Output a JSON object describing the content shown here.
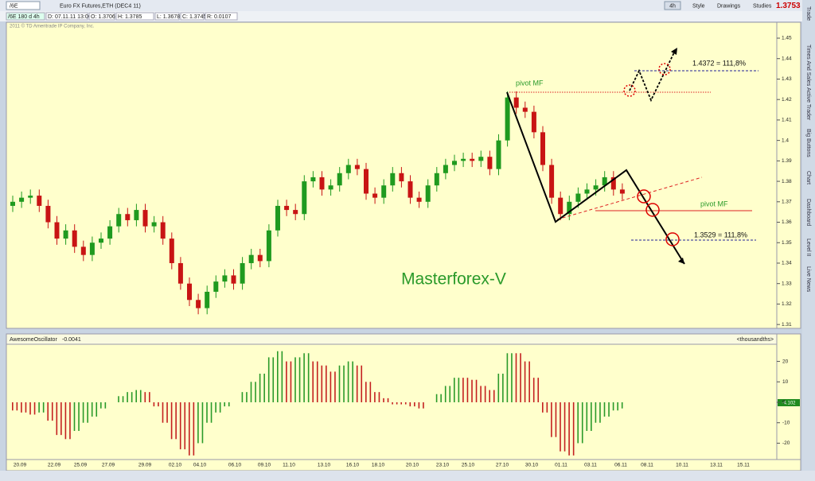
{
  "toolbar": {
    "symbol": "/6E",
    "description": "Euro FX Futures,ETH (DEC4 11)",
    "period": "4h",
    "buttons": [
      "Style",
      "Drawings",
      "Studies"
    ],
    "last_price": "1.3753"
  },
  "info_bar": [
    "/6E 180 d 4h",
    "D: 07.11.11 13:00",
    "O: 1.3706",
    "H: 1.3785",
    "L: 1.3678",
    "C: 1.3745",
    "R: 0.0107"
  ],
  "copyright": "2011 © TD Ameritrade IP Company, Inc.",
  "side_tabs": [
    "Trade",
    "Times And Sales",
    "Active Trader",
    "Big Buttons",
    "Chart",
    "Dashboard",
    "Level II",
    "Live News"
  ],
  "annotations": {
    "pivot_top": "pivot MF",
    "pivot_bottom": "pivot MF",
    "target_up": "1.4372 = 111,8%",
    "target_down": "1.3529 = 111,8%",
    "watermark": "Masterforex-V"
  },
  "chart_data": [
    {
      "type": "candlestick",
      "up_color": "#1f9a1f",
      "down_color": "#c81414",
      "ylim": [
        1.3085,
        1.457
      ],
      "yticks": [
        1.31,
        1.32,
        1.33,
        1.34,
        1.35,
        1.36,
        1.37,
        1.38,
        1.39,
        1.4,
        1.41,
        1.42,
        1.43,
        1.44,
        1.45
      ],
      "x": [
        "20.09",
        "22.09",
        "25.09",
        "27.09",
        "29.09",
        "02.10",
        "04.10",
        "06.10",
        "09.10",
        "11.10",
        "13.10",
        "16.10",
        "18.10",
        "20.10",
        "23.10",
        "25.10",
        "27.10",
        "30.10",
        "01.11",
        "03.11",
        "06.11",
        "08.11",
        "10.11",
        "13.11",
        "15.11"
      ],
      "ohlc": [
        [
          1.368,
          1.373,
          1.365,
          1.37
        ],
        [
          1.37,
          1.375,
          1.367,
          1.372
        ],
        [
          1.372,
          1.376,
          1.369,
          1.373
        ],
        [
          1.373,
          1.376,
          1.365,
          1.368
        ],
        [
          1.368,
          1.371,
          1.357,
          1.36
        ],
        [
          1.36,
          1.363,
          1.349,
          1.352
        ],
        [
          1.352,
          1.359,
          1.349,
          1.356
        ],
        [
          1.356,
          1.359,
          1.345,
          1.348
        ],
        [
          1.348,
          1.351,
          1.341,
          1.344
        ],
        [
          1.344,
          1.353,
          1.341,
          1.35
        ],
        [
          1.35,
          1.355,
          1.347,
          1.352
        ],
        [
          1.352,
          1.361,
          1.349,
          1.358
        ],
        [
          1.358,
          1.367,
          1.355,
          1.364
        ],
        [
          1.364,
          1.367,
          1.358,
          1.361
        ],
        [
          1.361,
          1.369,
          1.358,
          1.366
        ],
        [
          1.366,
          1.369,
          1.355,
          1.358
        ],
        [
          1.358,
          1.363,
          1.355,
          1.36
        ],
        [
          1.36,
          1.363,
          1.349,
          1.352
        ],
        [
          1.352,
          1.355,
          1.337,
          1.34
        ],
        [
          1.34,
          1.343,
          1.327,
          1.33
        ],
        [
          1.33,
          1.333,
          1.319,
          1.322
        ],
        [
          1.322,
          1.325,
          1.315,
          1.318
        ],
        [
          1.318,
          1.329,
          1.315,
          1.326
        ],
        [
          1.326,
          1.334,
          1.323,
          1.331
        ],
        [
          1.331,
          1.337,
          1.328,
          1.334
        ],
        [
          1.334,
          1.337,
          1.327,
          1.33
        ],
        [
          1.33,
          1.343,
          1.327,
          1.34
        ],
        [
          1.34,
          1.347,
          1.337,
          1.344
        ],
        [
          1.344,
          1.347,
          1.338,
          1.341
        ],
        [
          1.341,
          1.359,
          1.338,
          1.356
        ],
        [
          1.356,
          1.371,
          1.353,
          1.368
        ],
        [
          1.368,
          1.371,
          1.363,
          1.366
        ],
        [
          1.366,
          1.369,
          1.361,
          1.364
        ],
        [
          1.364,
          1.383,
          1.361,
          1.38
        ],
        [
          1.38,
          1.385,
          1.377,
          1.382
        ],
        [
          1.382,
          1.385,
          1.373,
          1.376
        ],
        [
          1.376,
          1.381,
          1.373,
          1.378
        ],
        [
          1.378,
          1.387,
          1.375,
          1.384
        ],
        [
          1.384,
          1.391,
          1.381,
          1.388
        ],
        [
          1.388,
          1.391,
          1.383,
          1.386
        ],
        [
          1.386,
          1.389,
          1.371,
          1.374
        ],
        [
          1.374,
          1.377,
          1.369,
          1.372
        ],
        [
          1.372,
          1.381,
          1.369,
          1.378
        ],
        [
          1.378,
          1.387,
          1.375,
          1.384
        ],
        [
          1.384,
          1.387,
          1.377,
          1.38
        ],
        [
          1.38,
          1.383,
          1.369,
          1.372
        ],
        [
          1.372,
          1.375,
          1.367,
          1.37
        ],
        [
          1.37,
          1.381,
          1.367,
          1.378
        ],
        [
          1.378,
          1.387,
          1.375,
          1.384
        ],
        [
          1.384,
          1.391,
          1.381,
          1.388
        ],
        [
          1.388,
          1.393,
          1.385,
          1.39
        ],
        [
          1.39,
          1.394,
          1.387,
          1.391
        ],
        [
          1.391,
          1.394,
          1.387,
          1.39
        ],
        [
          1.39,
          1.395,
          1.387,
          1.392
        ],
        [
          1.392,
          1.395,
          1.383,
          1.386
        ],
        [
          1.386,
          1.403,
          1.383,
          1.4
        ],
        [
          1.4,
          1.424,
          1.397,
          1.421
        ],
        [
          1.421,
          1.424,
          1.413,
          1.416
        ],
        [
          1.416,
          1.419,
          1.411,
          1.414
        ],
        [
          1.414,
          1.417,
          1.401,
          1.404
        ],
        [
          1.404,
          1.407,
          1.385,
          1.388
        ],
        [
          1.388,
          1.391,
          1.369,
          1.372
        ],
        [
          1.372,
          1.375,
          1.361,
          1.364
        ],
        [
          1.364,
          1.373,
          1.361,
          1.37
        ],
        [
          1.37,
          1.377,
          1.367,
          1.374
        ],
        [
          1.374,
          1.379,
          1.371,
          1.376
        ],
        [
          1.376,
          1.381,
          1.373,
          1.378
        ],
        [
          1.378,
          1.385,
          1.375,
          1.382
        ],
        [
          1.382,
          1.385,
          1.373,
          1.376
        ],
        [
          1.376,
          1.379,
          1.371,
          1.374
        ]
      ]
    },
    {
      "type": "histogram-oscillator",
      "title": "AwesomeOscillator",
      "current": "-0.0041",
      "units": "<thousandths>",
      "last_label": "-4.102",
      "up_color": "#2a9a2a",
      "down_color": "#c42020",
      "ylim": [
        -28,
        28
      ],
      "yticks": [
        -20,
        -10,
        0,
        10,
        20
      ],
      "values": [
        -4,
        -5,
        -6,
        -5,
        -9,
        -16,
        -18,
        -14,
        -10,
        -7,
        -3,
        0,
        3,
        5,
        6,
        5,
        -2,
        -10,
        -18,
        -23,
        -26,
        -20,
        -10,
        -5,
        -2,
        0,
        5,
        10,
        14,
        22,
        25,
        20,
        22,
        24,
        20,
        18,
        15,
        18,
        20,
        18,
        10,
        5,
        2,
        -1,
        -1,
        -2,
        -3,
        0,
        4,
        8,
        12,
        12,
        11,
        8,
        6,
        14,
        24,
        24,
        20,
        12,
        -5,
        -17,
        -24,
        -26,
        -20,
        -14,
        -10,
        -7,
        -4,
        -3
      ]
    }
  ]
}
